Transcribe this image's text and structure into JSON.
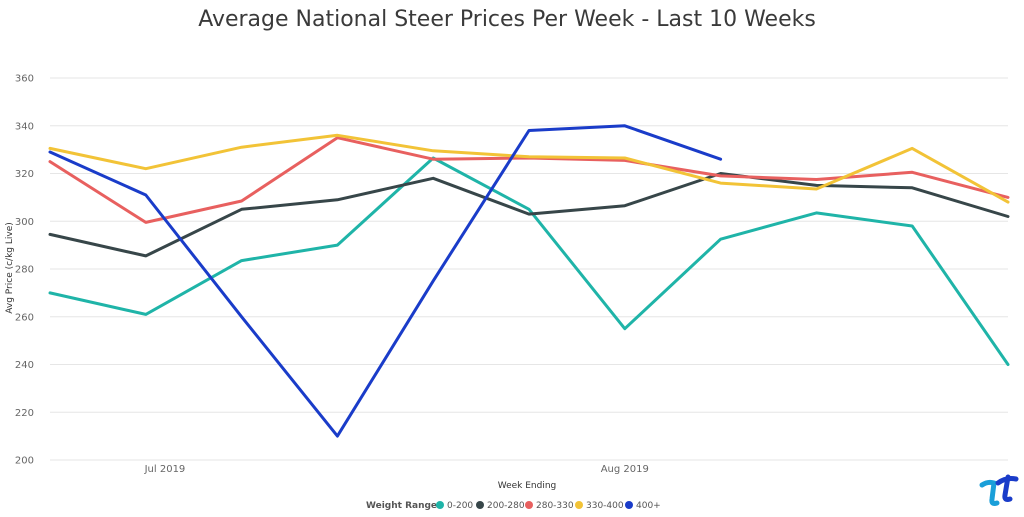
{
  "chart_data": {
    "type": "line",
    "title": "Average National Steer Prices Per Week - Last 10 Weeks",
    "xlabel": "Week Ending",
    "ylabel": "Avg Price (c/kg Live)",
    "ylim": [
      200,
      360
    ],
    "yticks": [
      "200",
      "220",
      "240",
      "260",
      "280",
      "300",
      "320",
      "340",
      "360"
    ],
    "xtick_labels": [
      {
        "label": "Jul 2019",
        "week": 2.2
      },
      {
        "label": "Aug 2019",
        "week": 7
      }
    ],
    "grid": true,
    "legend": {
      "title": "Weight Range",
      "placement": "bottom-center"
    },
    "series": [
      {
        "name": "0-200",
        "color": "#1fb4a8",
        "values": [
          270,
          261,
          283.5,
          290,
          326.5,
          305,
          255,
          292.5,
          303.5,
          298,
          240
        ]
      },
      {
        "name": "200-280",
        "color": "#374649",
        "values": [
          294.5,
          285.5,
          305,
          309,
          318,
          303,
          306.5,
          320,
          315,
          314,
          302
        ]
      },
      {
        "name": "280-330",
        "color": "#e8605f",
        "values": [
          325,
          299.5,
          308.5,
          335,
          326,
          326.5,
          325.5,
          319,
          317.5,
          320.5,
          310
        ]
      },
      {
        "name": "330-400",
        "color": "#f2c337",
        "values": [
          330.5,
          322,
          331,
          336,
          329.5,
          327,
          326.5,
          316,
          313.5,
          330.5,
          308
        ]
      },
      {
        "name": "400+",
        "color": "#1a3cc9",
        "values": [
          329,
          311,
          260,
          210,
          275,
          338,
          340,
          326,
          null,
          null,
          null
        ]
      }
    ]
  },
  "logo": {
    "name": "brand-logo",
    "colors": [
      "#1a9fd9",
      "#1a3cc9"
    ]
  }
}
